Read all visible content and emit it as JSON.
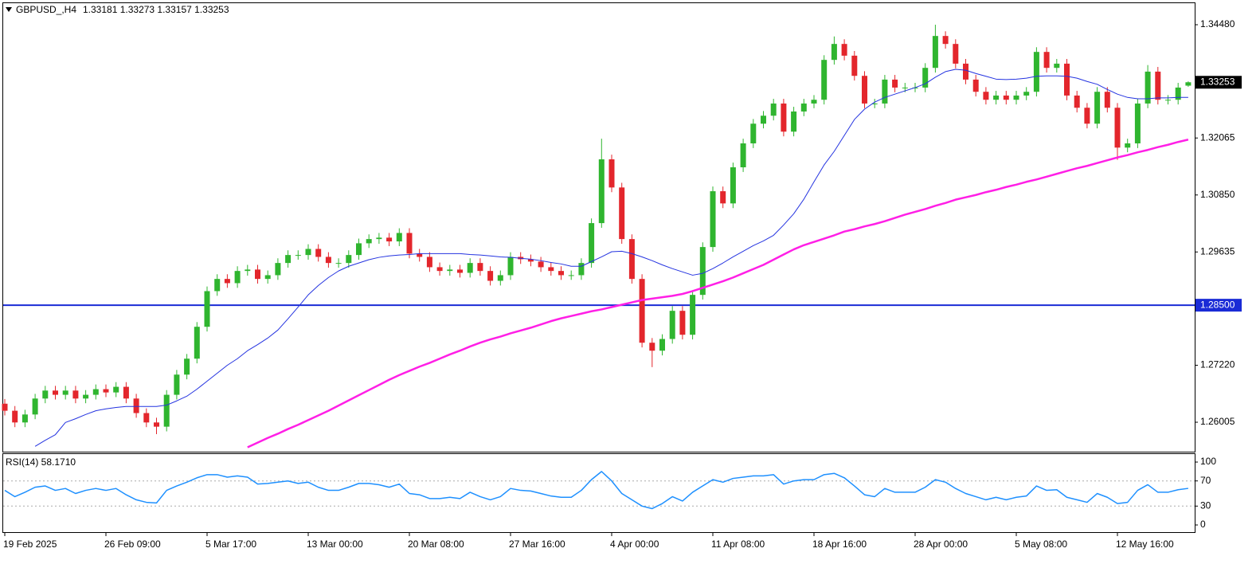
{
  "chart_data": [
    {
      "type": "candlestick",
      "title": "GBPUSD_,H4",
      "ohlc_text": "1.33181 1.33273 1.33157 1.33253",
      "up_color": "#2fb52f",
      "down_color": "#e3262c",
      "categories": [
        "19 Feb 2025",
        null,
        null,
        null,
        null,
        null,
        null,
        null,
        null,
        null,
        "26 Feb 09:00",
        null,
        null,
        null,
        null,
        null,
        null,
        null,
        null,
        null,
        "5 Mar 17:00",
        null,
        null,
        null,
        null,
        null,
        null,
        null,
        null,
        null,
        "13 Mar 00:00",
        null,
        null,
        null,
        null,
        null,
        null,
        null,
        null,
        null,
        "20 Mar 08:00",
        null,
        null,
        null,
        null,
        null,
        null,
        null,
        null,
        null,
        "27 Mar 16:00",
        null,
        null,
        null,
        null,
        null,
        null,
        null,
        null,
        null,
        "4 Apr 00:00",
        null,
        null,
        null,
        null,
        null,
        null,
        null,
        null,
        null,
        "11 Apr 08:00",
        null,
        null,
        null,
        null,
        null,
        null,
        null,
        null,
        null,
        "18 Apr 16:00",
        null,
        null,
        null,
        null,
        null,
        null,
        null,
        null,
        null,
        "28 Apr 00:00",
        null,
        null,
        null,
        null,
        null,
        null,
        null,
        null,
        null,
        "5 May 08:00",
        null,
        null,
        null,
        null,
        null,
        null,
        null,
        null,
        null,
        "12 May 16:00",
        null,
        null,
        null,
        null,
        null,
        null,
        null
      ],
      "open": [
        1.264,
        1.2625,
        1.26,
        1.2617,
        1.2651,
        1.2668,
        1.2659,
        1.2668,
        1.2651,
        1.2659,
        1.2671,
        1.2664,
        1.2676,
        1.2651,
        1.262,
        1.26,
        1.2591,
        1.2659,
        1.2702,
        1.2736,
        1.2804,
        1.288,
        1.2906,
        1.2897,
        1.2923,
        1.2926,
        1.2906,
        1.2914,
        1.294,
        1.2957,
        1.2957,
        1.297,
        1.2953,
        1.294,
        1.294,
        1.2957,
        1.2982,
        1.2991,
        1.2994,
        1.2986,
        1.3004,
        1.296,
        1.2953,
        1.2931,
        1.2923,
        1.2926,
        1.2919,
        1.294,
        1.2923,
        1.2902,
        1.2914,
        1.2953,
        1.2948,
        1.2943,
        1.2931,
        1.2923,
        1.2914,
        1.2914,
        1.294,
        1.3025,
        1.3161,
        1.3101,
        1.2991,
        1.2906,
        1.277,
        1.2753,
        1.2778,
        1.2838,
        1.2787,
        1.2872,
        1.2974,
        1.3093,
        1.3067,
        1.3144,
        1.3195,
        1.3237,
        1.3254,
        1.328,
        1.322,
        1.3263,
        1.328,
        1.3288,
        1.3373,
        1.3407,
        1.3382,
        1.3339,
        1.328,
        1.328,
        1.3331,
        1.3314,
        1.3314,
        1.3314,
        1.3356,
        1.3424,
        1.3407,
        1.3365,
        1.3331,
        1.3305,
        1.3288,
        1.3297,
        1.3288,
        1.3297,
        1.3305,
        1.339,
        1.3356,
        1.3365,
        1.3297,
        1.3271,
        1.3237,
        1.3305,
        1.3271,
        1.3186,
        1.3195,
        1.328,
        1.3348,
        1.3288,
        1.3288,
        1.33181
      ],
      "high": [
        1.265,
        1.2635,
        1.2627,
        1.2661,
        1.2678,
        1.2678,
        1.2678,
        1.2678,
        1.2669,
        1.2681,
        1.2681,
        1.2686,
        1.2686,
        1.2661,
        1.263,
        1.261,
        1.2669,
        1.2712,
        1.2746,
        1.2814,
        1.289,
        1.2916,
        1.2916,
        1.2933,
        1.2936,
        1.2936,
        1.2924,
        1.295,
        1.2967,
        1.2967,
        1.298,
        1.298,
        1.2963,
        1.295,
        1.2967,
        1.2992,
        1.3001,
        1.3004,
        1.3004,
        1.3014,
        1.3014,
        1.297,
        1.2963,
        1.2941,
        1.2936,
        1.2936,
        1.295,
        1.295,
        1.2933,
        1.2924,
        1.2963,
        1.2963,
        1.2958,
        1.2953,
        1.2941,
        1.2933,
        1.2924,
        1.295,
        1.3035,
        1.3205,
        1.3171,
        1.3111,
        1.3001,
        1.2916,
        1.278,
        1.2788,
        1.2848,
        1.2848,
        1.2882,
        1.2984,
        1.3103,
        1.3103,
        1.3154,
        1.3205,
        1.3247,
        1.3264,
        1.329,
        1.329,
        1.3273,
        1.329,
        1.3298,
        1.3383,
        1.3423,
        1.3417,
        1.3392,
        1.3349,
        1.329,
        1.3341,
        1.3341,
        1.3324,
        1.3324,
        1.3366,
        1.3448,
        1.3434,
        1.3417,
        1.3375,
        1.3341,
        1.3315,
        1.3307,
        1.3307,
        1.3307,
        1.3315,
        1.34,
        1.34,
        1.3375,
        1.3375,
        1.3307,
        1.3281,
        1.3315,
        1.3315,
        1.3281,
        1.3205,
        1.329,
        1.3362,
        1.3358,
        1.3298,
        1.3324,
        1.33273
      ],
      "low": [
        1.2615,
        1.259,
        1.259,
        1.2607,
        1.2641,
        1.2649,
        1.2649,
        1.2641,
        1.2641,
        1.2649,
        1.2654,
        1.2654,
        1.2641,
        1.261,
        1.259,
        1.2575,
        1.2581,
        1.2649,
        1.2692,
        1.2726,
        1.2794,
        1.287,
        1.2887,
        1.2887,
        1.2913,
        1.2896,
        1.2896,
        1.2904,
        1.293,
        1.2947,
        1.2947,
        1.2943,
        1.293,
        1.293,
        1.293,
        1.2947,
        1.2972,
        1.2981,
        1.2976,
        1.2976,
        1.295,
        1.2943,
        1.2921,
        1.2913,
        1.2913,
        1.2909,
        1.2909,
        1.2913,
        1.2892,
        1.2892,
        1.2904,
        1.2938,
        1.2933,
        1.2921,
        1.2913,
        1.2904,
        1.2904,
        1.2904,
        1.293,
        1.3015,
        1.3091,
        1.2981,
        1.2896,
        1.276,
        1.2718,
        1.2743,
        1.2768,
        1.2777,
        1.2777,
        1.2862,
        1.2964,
        1.3057,
        1.3057,
        1.3134,
        1.3185,
        1.3227,
        1.3244,
        1.321,
        1.321,
        1.3253,
        1.327,
        1.3278,
        1.3363,
        1.3372,
        1.3329,
        1.327,
        1.327,
        1.327,
        1.3304,
        1.3304,
        1.3304,
        1.3304,
        1.3346,
        1.3397,
        1.3355,
        1.3321,
        1.3295,
        1.3278,
        1.3278,
        1.3278,
        1.3278,
        1.3287,
        1.3295,
        1.3346,
        1.3346,
        1.3287,
        1.3261,
        1.3227,
        1.3227,
        1.3261,
        1.316,
        1.3176,
        1.3185,
        1.327,
        1.3278,
        1.3278,
        1.3278,
        1.33157
      ],
      "close": [
        1.2625,
        1.26,
        1.2617,
        1.2651,
        1.2668,
        1.2659,
        1.2668,
        1.2651,
        1.2659,
        1.2671,
        1.2664,
        1.2676,
        1.2651,
        1.262,
        1.26,
        1.2591,
        1.2659,
        1.2702,
        1.2736,
        1.2804,
        1.288,
        1.2906,
        1.2897,
        1.2923,
        1.2926,
        1.2906,
        1.2914,
        1.294,
        1.2957,
        1.2957,
        1.297,
        1.2953,
        1.294,
        1.294,
        1.2957,
        1.2982,
        1.2991,
        1.2994,
        1.2986,
        1.3004,
        1.296,
        1.2953,
        1.2931,
        1.2923,
        1.2926,
        1.2919,
        1.294,
        1.2923,
        1.2902,
        1.2914,
        1.2953,
        1.2948,
        1.2943,
        1.2931,
        1.2923,
        1.2914,
        1.2914,
        1.294,
        1.3025,
        1.3161,
        1.3101,
        1.2991,
        1.2906,
        1.277,
        1.2753,
        1.2778,
        1.2838,
        1.2787,
        1.2872,
        1.2974,
        1.3093,
        1.3067,
        1.3144,
        1.3195,
        1.3237,
        1.3254,
        1.328,
        1.322,
        1.3263,
        1.328,
        1.3288,
        1.3373,
        1.3407,
        1.3382,
        1.3339,
        1.328,
        1.328,
        1.3331,
        1.3314,
        1.3314,
        1.3314,
        1.3356,
        1.3424,
        1.3407,
        1.3365,
        1.3331,
        1.3305,
        1.3288,
        1.3297,
        1.3288,
        1.3297,
        1.3305,
        1.339,
        1.3356,
        1.3365,
        1.3297,
        1.3271,
        1.3237,
        1.3305,
        1.3271,
        1.3186,
        1.3195,
        1.328,
        1.3348,
        1.3288,
        1.3288,
        1.3314,
        1.33253
      ],
      "moving_averages": [
        {
          "color": "#2433e0",
          "width": 1,
          "values": [
            null,
            null,
            null,
            1.2549,
            1.2562,
            1.2574,
            1.26,
            1.2608,
            1.2617,
            1.2625,
            1.2629,
            1.2632,
            1.2634,
            1.2634,
            1.2634,
            1.2634,
            1.2637,
            1.2646,
            1.2656,
            1.2671,
            1.2688,
            1.2705,
            1.2722,
            1.2736,
            1.2753,
            1.2766,
            1.278,
            1.2797,
            1.2821,
            1.2846,
            1.2872,
            1.2892,
            1.2909,
            1.2923,
            1.2933,
            1.294,
            1.2947,
            1.2952,
            1.2955,
            1.2957,
            1.2958,
            1.296,
            1.296,
            1.296,
            1.296,
            1.296,
            1.2958,
            1.2957,
            1.2955,
            1.2953,
            1.2952,
            1.295,
            1.2948,
            1.2945,
            1.2941,
            1.2938,
            1.2933,
            1.2933,
            1.2943,
            1.2953,
            1.2964,
            1.2965,
            1.296,
            1.2953,
            1.2945,
            1.2936,
            1.2928,
            1.2921,
            1.2914,
            1.2918,
            1.2928,
            1.294,
            1.2953,
            1.2965,
            1.2977,
            1.2987,
            1.2999,
            1.3021,
            1.3045,
            1.3076,
            1.3113,
            1.3149,
            1.3178,
            1.3212,
            1.3246,
            1.3268,
            1.3283,
            1.3293,
            1.33,
            1.3307,
            1.3314,
            1.3322,
            1.3336,
            1.3348,
            1.3353,
            1.3351,
            1.3344,
            1.3338,
            1.3332,
            1.3331,
            1.3332,
            1.3334,
            1.3338,
            1.3339,
            1.3339,
            1.3338,
            1.3334,
            1.3327,
            1.3321,
            1.331,
            1.33,
            1.3293,
            1.329,
            1.329,
            1.3292,
            1.3292,
            1.3293,
            1.3293
          ]
        },
        {
          "color": "#ff1fe6",
          "width": 2.5,
          "values": [
            null,
            null,
            null,
            null,
            null,
            null,
            null,
            null,
            null,
            null,
            null,
            null,
            null,
            null,
            null,
            null,
            null,
            null,
            null,
            null,
            null,
            null,
            null,
            null,
            1.2547,
            1.2557,
            1.2567,
            1.2576,
            1.2586,
            1.2595,
            1.2605,
            1.2615,
            1.2625,
            1.2636,
            1.2647,
            1.2658,
            1.2669,
            1.268,
            1.2691,
            1.2701,
            1.271,
            1.2719,
            1.2727,
            1.2736,
            1.2745,
            1.2753,
            1.2762,
            1.277,
            1.2777,
            1.2783,
            1.279,
            1.2796,
            1.2802,
            1.2809,
            1.2816,
            1.2822,
            1.2827,
            1.2832,
            1.2837,
            1.2841,
            1.2846,
            1.2851,
            1.2856,
            1.2861,
            1.2864,
            1.2867,
            1.287,
            1.2874,
            1.288,
            1.2887,
            1.2894,
            1.2901,
            1.2909,
            1.2918,
            1.2927,
            1.2936,
            1.2947,
            1.2958,
            1.2969,
            1.2978,
            1.2985,
            1.2992,
            1.2999,
            1.3007,
            1.3012,
            1.3018,
            1.3023,
            1.3029,
            1.3036,
            1.3043,
            1.3049,
            1.3055,
            1.3062,
            1.3068,
            1.3075,
            1.308,
            1.3085,
            1.3091,
            1.3096,
            1.3102,
            1.3107,
            1.3113,
            1.3118,
            1.3124,
            1.313,
            1.3136,
            1.3142,
            1.3147,
            1.3153,
            1.3159,
            1.3165,
            1.317,
            1.3176,
            1.3181,
            1.3187,
            1.3192,
            1.3198,
            1.3203
          ]
        }
      ],
      "hline": {
        "value": 1.285,
        "label": "1.28500",
        "color": "#1a2bd6"
      },
      "last_price": {
        "value": 1.33253,
        "label": "1.33253"
      },
      "ylim": [
        1.25377,
        1.34939
      ],
      "yticks": [
        {
          "value": 1.26005,
          "label": "1.26005"
        },
        {
          "value": 1.2722,
          "label": "1.27220"
        },
        {
          "value": 1.29635,
          "label": "1.29635"
        },
        {
          "value": 1.3085,
          "label": "1.30850"
        },
        {
          "value": 1.32065,
          "label": "1.32065"
        },
        {
          "value": 1.3448,
          "label": "1.34480"
        }
      ]
    },
    {
      "type": "line",
      "title": "RSI(14) 58.1710",
      "color": "#1e90ff",
      "values": [
        55,
        45,
        52,
        60,
        62,
        55,
        58,
        50,
        55,
        58,
        55,
        58,
        48,
        40,
        36,
        35,
        55,
        62,
        68,
        75,
        80,
        80,
        76,
        78,
        76,
        65,
        66,
        68,
        70,
        66,
        68,
        60,
        55,
        55,
        60,
        66,
        66,
        64,
        60,
        65,
        50,
        48,
        42,
        42,
        44,
        42,
        52,
        45,
        40,
        45,
        58,
        55,
        54,
        50,
        46,
        44,
        44,
        55,
        72,
        85,
        70,
        50,
        40,
        30,
        26,
        34,
        45,
        38,
        52,
        62,
        72,
        68,
        74,
        76,
        78,
        78,
        80,
        65,
        70,
        72,
        72,
        80,
        82,
        75,
        62,
        48,
        45,
        58,
        52,
        52,
        52,
        60,
        72,
        68,
        58,
        50,
        45,
        40,
        44,
        40,
        44,
        46,
        62,
        55,
        56,
        44,
        40,
        36,
        50,
        44,
        34,
        36,
        55,
        64,
        52,
        52,
        56,
        58.171
      ],
      "levels": [
        70,
        30
      ],
      "ylim": [
        -11.4,
        112.7
      ],
      "yticks": [
        100,
        70,
        30,
        0
      ]
    }
  ]
}
